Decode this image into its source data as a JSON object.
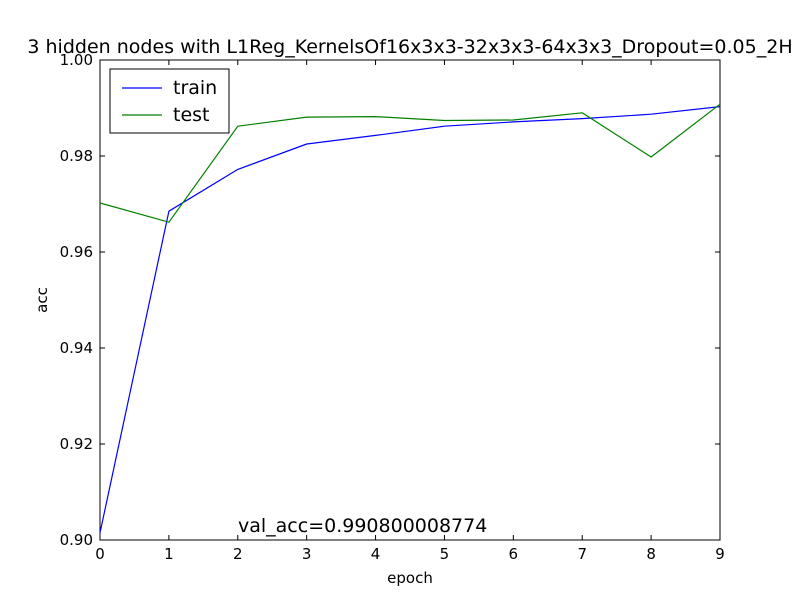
{
  "chart_data": {
    "type": "line",
    "title": "3 hidden nodes with L1Reg_KernelsOf16x3x3-32x3x3-64x3x3_Dropout=0.05_2H",
    "xlabel": "epoch",
    "ylabel": "acc",
    "xlim": [
      0,
      9
    ],
    "ylim": [
      0.9,
      1.0
    ],
    "x": [
      0,
      1,
      2,
      3,
      4,
      5,
      6,
      7,
      8,
      9
    ],
    "xticks": [
      "0",
      "1",
      "2",
      "3",
      "4",
      "5",
      "6",
      "7",
      "8",
      "9"
    ],
    "yticks": [
      "0.90",
      "0.92",
      "0.94",
      "0.96",
      "0.98",
      "1.00"
    ],
    "grid": false,
    "legend_position": "top-left",
    "series": [
      {
        "name": "train",
        "color": "#0000ff",
        "values": [
          0.9015,
          0.9685,
          0.9772,
          0.9825,
          0.9843,
          0.9862,
          0.9871,
          0.9878,
          0.9887,
          0.9903
        ]
      },
      {
        "name": "test",
        "color": "#008000",
        "values": [
          0.9702,
          0.9662,
          0.9862,
          0.9881,
          0.9882,
          0.9874,
          0.9875,
          0.989,
          0.9798,
          0.9908
        ]
      }
    ],
    "annotation": "val_acc=0.990800008774"
  }
}
